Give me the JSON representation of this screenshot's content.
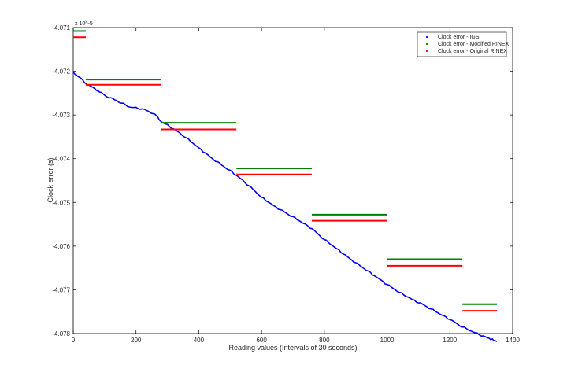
{
  "chart_data": {
    "type": "line",
    "title": "",
    "xlabel": "Reading values (Intervals of 30 seconds)",
    "ylabel": "Clock error (s)",
    "xlim": [
      0,
      1400
    ],
    "ylim": [
      -4.078,
      -4.071
    ],
    "y_scale_note": "x 10^-5",
    "x_ticks": [
      "0",
      "200",
      "400",
      "600",
      "800",
      "1000",
      "1200",
      "1400"
    ],
    "y_ticks": [
      "-4.071",
      "-4.072",
      "-4.073",
      "-4.074",
      "-4.075",
      "-4.076",
      "-4.077",
      "-4.078"
    ],
    "grid": false,
    "legend_position": "top-right",
    "series": [
      {
        "name": "Clock error - IGS",
        "color": "#0000ff",
        "style": "line",
        "x": [
          0,
          20,
          40,
          60,
          80,
          100,
          140,
          180,
          220,
          260,
          280,
          320,
          360,
          400,
          440,
          480,
          520,
          560,
          600,
          640,
          680,
          720,
          760,
          800,
          840,
          880,
          920,
          960,
          1000,
          1040,
          1080,
          1120,
          1160,
          1200,
          1240,
          1280,
          1320,
          1350
        ],
        "y": [
          -4.07202,
          -4.07214,
          -4.07228,
          -4.07236,
          -4.07245,
          -4.07255,
          -4.07268,
          -4.07282,
          -4.07286,
          -4.07298,
          -4.07315,
          -4.07332,
          -4.07352,
          -4.07375,
          -4.07398,
          -4.07418,
          -4.07438,
          -4.07462,
          -4.07488,
          -4.07508,
          -4.07525,
          -4.07542,
          -4.0756,
          -4.07585,
          -4.07606,
          -4.07628,
          -4.07648,
          -4.07668,
          -4.07688,
          -4.07706,
          -4.07722,
          -4.07736,
          -4.07752,
          -4.07768,
          -4.07785,
          -4.07798,
          -4.0781,
          -4.07818
        ]
      },
      {
        "name": "Clock error - Modified RINEX",
        "color": "#008000",
        "style": "steps",
        "segments": [
          {
            "x0": 0,
            "x1": 40,
            "y": -4.07108
          },
          {
            "x0": 40,
            "x1": 280,
            "y": -4.07219
          },
          {
            "x0": 280,
            "x1": 520,
            "y": -4.07318
          },
          {
            "x0": 520,
            "x1": 760,
            "y": -4.07422
          },
          {
            "x0": 760,
            "x1": 1000,
            "y": -4.07528
          },
          {
            "x0": 1000,
            "x1": 1240,
            "y": -4.0763
          },
          {
            "x0": 1240,
            "x1": 1350,
            "y": -4.07733
          }
        ]
      },
      {
        "name": "Clock error - Original RINEX",
        "color": "#ff0000",
        "style": "steps",
        "segments": [
          {
            "x0": 0,
            "x1": 40,
            "y": -4.07122
          },
          {
            "x0": 40,
            "x1": 280,
            "y": -4.07231
          },
          {
            "x0": 280,
            "x1": 520,
            "y": -4.07333
          },
          {
            "x0": 520,
            "x1": 760,
            "y": -4.07436
          },
          {
            "x0": 760,
            "x1": 1000,
            "y": -4.07542
          },
          {
            "x0": 1000,
            "x1": 1240,
            "y": -4.07645
          },
          {
            "x0": 1240,
            "x1": 1350,
            "y": -4.07748
          }
        ]
      }
    ]
  }
}
